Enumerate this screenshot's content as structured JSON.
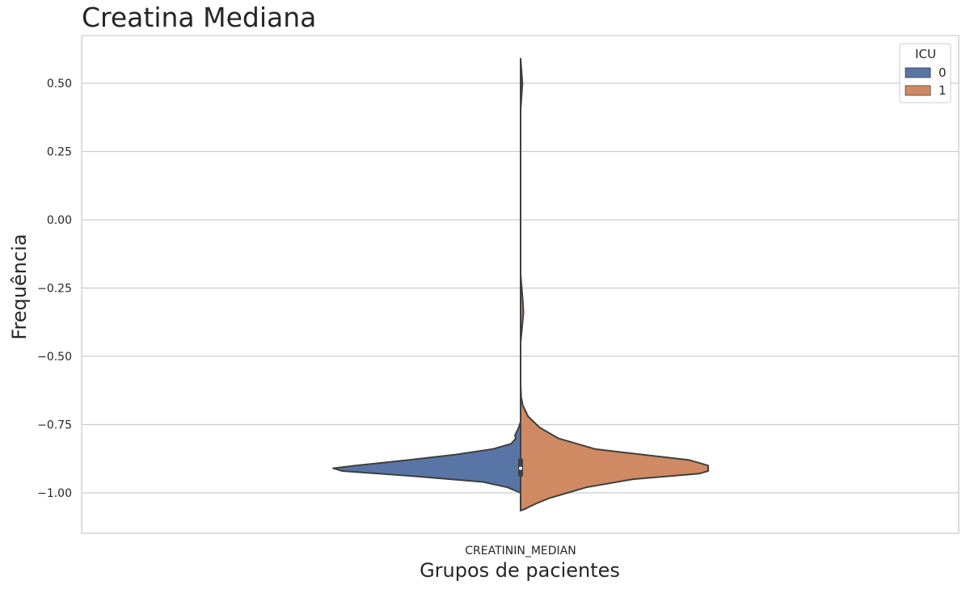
{
  "chart_data": {
    "type": "violin",
    "title": "Creatina Mediana",
    "xlabel": "Grupos de pacientes",
    "ylabel": "Frequência",
    "categories": [
      "CREATININ_MEDIAN"
    ],
    "ylim": [
      -1.15,
      0.67
    ],
    "yticks": [
      0.5,
      0.25,
      0.0,
      -0.25,
      -0.5,
      -0.75,
      -1.0
    ],
    "ytick_labels": [
      "0.50",
      "0.25",
      "0.00",
      "−0.25",
      "−0.50",
      "−0.75",
      "−1.00"
    ],
    "grid": true,
    "split": true,
    "legend": {
      "title": "ICU",
      "placement": "top-right",
      "entries": [
        {
          "label": "0",
          "color": "#5975a6"
        },
        {
          "label": "1",
          "color": "#cf8a63"
        }
      ]
    },
    "series": [
      {
        "name": "0",
        "side": "left",
        "color": "#5975a6",
        "range": [
          -1.0,
          -0.74
        ],
        "median": -0.91,
        "profile": [
          {
            "y": -0.74,
            "d": 0.0
          },
          {
            "y": -0.76,
            "d": 0.01
          },
          {
            "y": -0.79,
            "d": 0.03
          },
          {
            "y": -0.8,
            "d": 0.025
          },
          {
            "y": -0.82,
            "d": 0.05
          },
          {
            "y": -0.84,
            "d": 0.15
          },
          {
            "y": -0.86,
            "d": 0.35
          },
          {
            "y": -0.88,
            "d": 0.6
          },
          {
            "y": -0.9,
            "d": 0.88
          },
          {
            "y": -0.91,
            "d": 1.0
          },
          {
            "y": -0.92,
            "d": 0.95
          },
          {
            "y": -0.94,
            "d": 0.55
          },
          {
            "y": -0.96,
            "d": 0.2
          },
          {
            "y": -0.98,
            "d": 0.07
          },
          {
            "y": -1.0,
            "d": 0.0
          }
        ]
      },
      {
        "name": "1",
        "side": "right",
        "color": "#cf8a63",
        "range": [
          -1.065,
          0.59
        ],
        "median": -0.91,
        "profile": [
          {
            "y": 0.59,
            "d": 0.0
          },
          {
            "y": 0.5,
            "d": 0.01
          },
          {
            "y": 0.4,
            "d": 0.0
          },
          {
            "y": -0.2,
            "d": 0.0
          },
          {
            "y": -0.3,
            "d": 0.012
          },
          {
            "y": -0.34,
            "d": 0.015
          },
          {
            "y": -0.38,
            "d": 0.01
          },
          {
            "y": -0.45,
            "d": 0.0
          },
          {
            "y": -0.6,
            "d": 0.0
          },
          {
            "y": -0.65,
            "d": 0.003
          },
          {
            "y": -0.68,
            "d": 0.012
          },
          {
            "y": -0.72,
            "d": 0.04
          },
          {
            "y": -0.76,
            "d": 0.1
          },
          {
            "y": -0.8,
            "d": 0.2
          },
          {
            "y": -0.84,
            "d": 0.4
          },
          {
            "y": -0.88,
            "d": 0.9
          },
          {
            "y": -0.9,
            "d": 1.0
          },
          {
            "y": -0.92,
            "d": 1.0
          },
          {
            "y": -0.93,
            "d": 0.95
          },
          {
            "y": -0.95,
            "d": 0.6
          },
          {
            "y": -0.98,
            "d": 0.35
          },
          {
            "y": -1.0,
            "d": 0.25
          },
          {
            "y": -1.02,
            "d": 0.15
          },
          {
            "y": -1.04,
            "d": 0.08
          },
          {
            "y": -1.06,
            "d": 0.02
          },
          {
            "y": -1.065,
            "d": 0.0
          }
        ]
      }
    ]
  }
}
